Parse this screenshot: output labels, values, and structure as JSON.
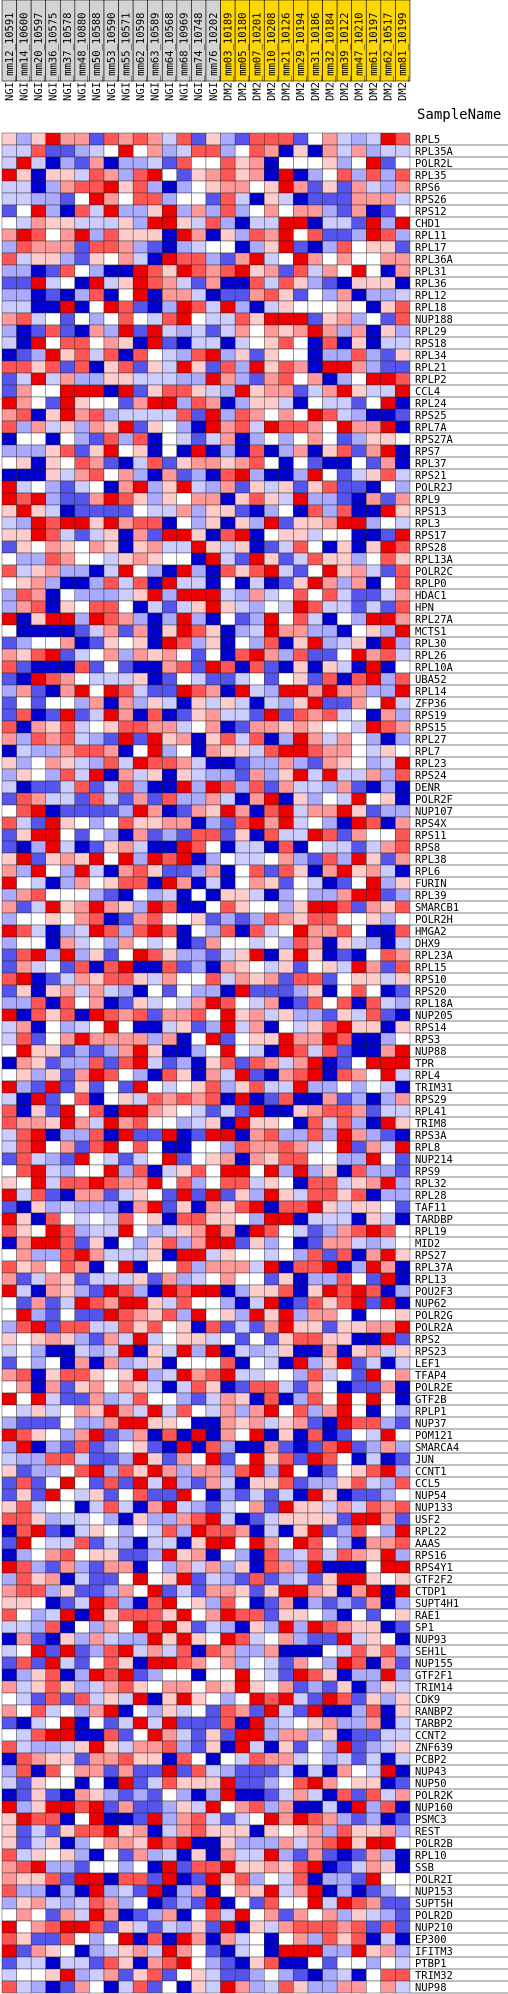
{
  "chart_data": {
    "type": "heatmap",
    "header": "SampleName",
    "columns": [
      {
        "label": "NGI_mm12_10591",
        "group": "NGI"
      },
      {
        "label": "NGI_mm14_10600",
        "group": "NGI"
      },
      {
        "label": "NGI_mm20_10597",
        "group": "NGI"
      },
      {
        "label": "NGI_mm36_10575",
        "group": "NGI"
      },
      {
        "label": "NGI_mm37_10578",
        "group": "NGI"
      },
      {
        "label": "NGI_mm48_10880",
        "group": "NGI"
      },
      {
        "label": "NGI_mm50_10588",
        "group": "NGI"
      },
      {
        "label": "NGI_mm53_10590",
        "group": "NGI"
      },
      {
        "label": "NGI_mm55_10571",
        "group": "NGI"
      },
      {
        "label": "NGI_mm62_10598",
        "group": "NGI"
      },
      {
        "label": "NGI_mm63_10589",
        "group": "NGI"
      },
      {
        "label": "NGI_mm64_10568",
        "group": "NGI"
      },
      {
        "label": "NGI_mm68_10969",
        "group": "NGI"
      },
      {
        "label": "NGI_mm74_10748",
        "group": "NGI"
      },
      {
        "label": "NGI_mm76_10202",
        "group": "NGI"
      },
      {
        "label": "DM2_mm03_10189",
        "group": "DM2"
      },
      {
        "label": "DM2_mm05_10180",
        "group": "DM2"
      },
      {
        "label": "DM2_mm07_10201",
        "group": "DM2"
      },
      {
        "label": "DM2_mm10_10208",
        "group": "DM2"
      },
      {
        "label": "DM2_mm21_10126",
        "group": "DM2"
      },
      {
        "label": "DM2_mm29_10194",
        "group": "DM2"
      },
      {
        "label": "DM2_mm31_10186",
        "group": "DM2"
      },
      {
        "label": "DM2_mm32_10184",
        "group": "DM2"
      },
      {
        "label": "DM2_mm39_10122",
        "group": "DM2"
      },
      {
        "label": "DM2_mm47_10210",
        "group": "DM2"
      },
      {
        "label": "DM2_mm61_10197",
        "group": "DM2"
      },
      {
        "label": "DM2_mm62_10517",
        "group": "DM2"
      },
      {
        "label": "DM2_mm81_10199",
        "group": "DM2"
      }
    ],
    "group_colors": {
      "NGI": "#d3d3d3",
      "DM2": "#ffd700"
    },
    "rows": [
      "RPL5",
      "RPL35A",
      "POLR2L",
      "RPL35",
      "RPS6",
      "RPS26",
      "RPS12",
      "CHD1",
      "RPL11",
      "RPL17",
      "RPL36A",
      "RPL31",
      "RPL36",
      "RPL12",
      "RPL18",
      "NUP188",
      "RPL29",
      "RPS18",
      "RPL34",
      "RPL21",
      "RPLP2",
      "CCL4",
      "RPL24",
      "RPS25",
      "RPL7A",
      "RPS27A",
      "RPS7",
      "RPL37",
      "RPS21",
      "POLR2J",
      "RPL9",
      "RPS13",
      "RPL3",
      "RPS17",
      "RPS28",
      "RPL13A",
      "POLR2C",
      "RPLP0",
      "HDAC1",
      "HPN",
      "RPL27A",
      "MCTS1",
      "RPL30",
      "RPL26",
      "RPL10A",
      "UBA52",
      "RPL14",
      "ZFP36",
      "RPS19",
      "RPS15",
      "RPL27",
      "RPL7",
      "RPL23",
      "RPS24",
      "DENR",
      "POLR2F",
      "NUP107",
      "RPS4X",
      "RPS11",
      "RPS8",
      "RPL38",
      "RPL6",
      "FURIN",
      "RPL39",
      "SMARCB1",
      "POLR2H",
      "HMGA2",
      "DHX9",
      "RPL23A",
      "RPL15",
      "RPS10",
      "RPS20",
      "RPL18A",
      "NUP205",
      "RPS14",
      "RPS3",
      "NUP88",
      "TPR",
      "RPL4",
      "TRIM31",
      "RPS29",
      "RPL41",
      "TRIM8",
      "RPS3A",
      "RPL8",
      "NUP214",
      "RPS9",
      "RPL32",
      "RPL28",
      "TAF11",
      "TARDBP",
      "RPL19",
      "MID2",
      "RPS27",
      "RPL37A",
      "RPL13",
      "POU2F3",
      "NUP62",
      "POLR2G",
      "POLR2A",
      "RPS2",
      "RPS23",
      "LEF1",
      "TFAP4",
      "POLR2E",
      "GTF2B",
      "RPLP1",
      "NUP37",
      "POM121",
      "SMARCA4",
      "JUN",
      "CCNT1",
      "CCL5",
      "NUP54",
      "NUP133",
      "USF2",
      "RPL22",
      "AAAS",
      "RPS16",
      "RPS4Y1",
      "GTF2F2",
      "CTDP1",
      "SUPT4H1",
      "RAE1",
      "SP1",
      "NUP93",
      "SEH1L",
      "NUP155",
      "GTF2F1",
      "TRIM14",
      "CDK9",
      "RANBP2",
      "TARBP2",
      "CCNT2",
      "ZNF639",
      "PCBP2",
      "NUP43",
      "NUP50",
      "POLR2K",
      "NUP160",
      "PSMC3",
      "REST",
      "POLR2B",
      "RPL10",
      "SSB",
      "POLR2I",
      "NUP153",
      "SUPT5H",
      "POLR2D",
      "NUP210",
      "EP300",
      "IFITM3",
      "PTBP1",
      "TRIM32",
      "NUP98"
    ],
    "value_scale": {
      "min": -2,
      "max": 2,
      "low_color": "#0000cc",
      "mid_color": "#ffffff",
      "high_color": "#ee0000"
    }
  }
}
